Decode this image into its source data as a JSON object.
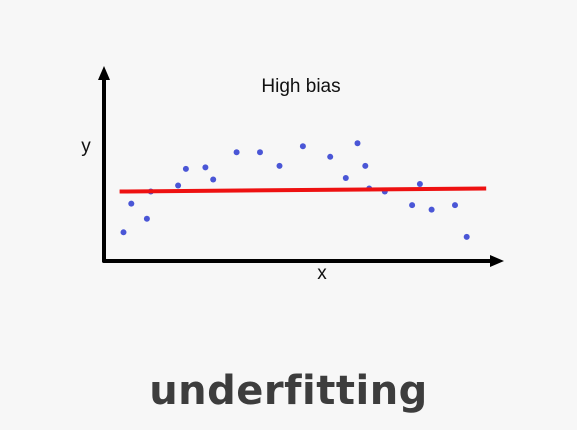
{
  "chart_data": {
    "type": "scatter",
    "title": "High bias",
    "xlabel": "x",
    "ylabel": "y",
    "xlim": [
      0,
      1
    ],
    "ylim": [
      0,
      1
    ],
    "grid": false,
    "legend": "none",
    "points": [
      {
        "x": 0.05,
        "y": 0.19
      },
      {
        "x": 0.07,
        "y": 0.38
      },
      {
        "x": 0.11,
        "y": 0.28
      },
      {
        "x": 0.12,
        "y": 0.46
      },
      {
        "x": 0.19,
        "y": 0.5
      },
      {
        "x": 0.21,
        "y": 0.61
      },
      {
        "x": 0.26,
        "y": 0.62
      },
      {
        "x": 0.28,
        "y": 0.54
      },
      {
        "x": 0.34,
        "y": 0.72
      },
      {
        "x": 0.4,
        "y": 0.72
      },
      {
        "x": 0.45,
        "y": 0.63
      },
      {
        "x": 0.51,
        "y": 0.76
      },
      {
        "x": 0.58,
        "y": 0.69
      },
      {
        "x": 0.62,
        "y": 0.55
      },
      {
        "x": 0.65,
        "y": 0.78
      },
      {
        "x": 0.67,
        "y": 0.63
      },
      {
        "x": 0.68,
        "y": 0.48
      },
      {
        "x": 0.72,
        "y": 0.46
      },
      {
        "x": 0.79,
        "y": 0.37
      },
      {
        "x": 0.81,
        "y": 0.51
      },
      {
        "x": 0.84,
        "y": 0.34
      },
      {
        "x": 0.9,
        "y": 0.37
      },
      {
        "x": 0.93,
        "y": 0.16
      }
    ],
    "fit_line": {
      "x": [
        0.04,
        0.98
      ],
      "y": [
        0.46,
        0.48
      ]
    },
    "point_color": "#4a56d6",
    "line_color": "#ee1111"
  },
  "caption": "underfitting"
}
